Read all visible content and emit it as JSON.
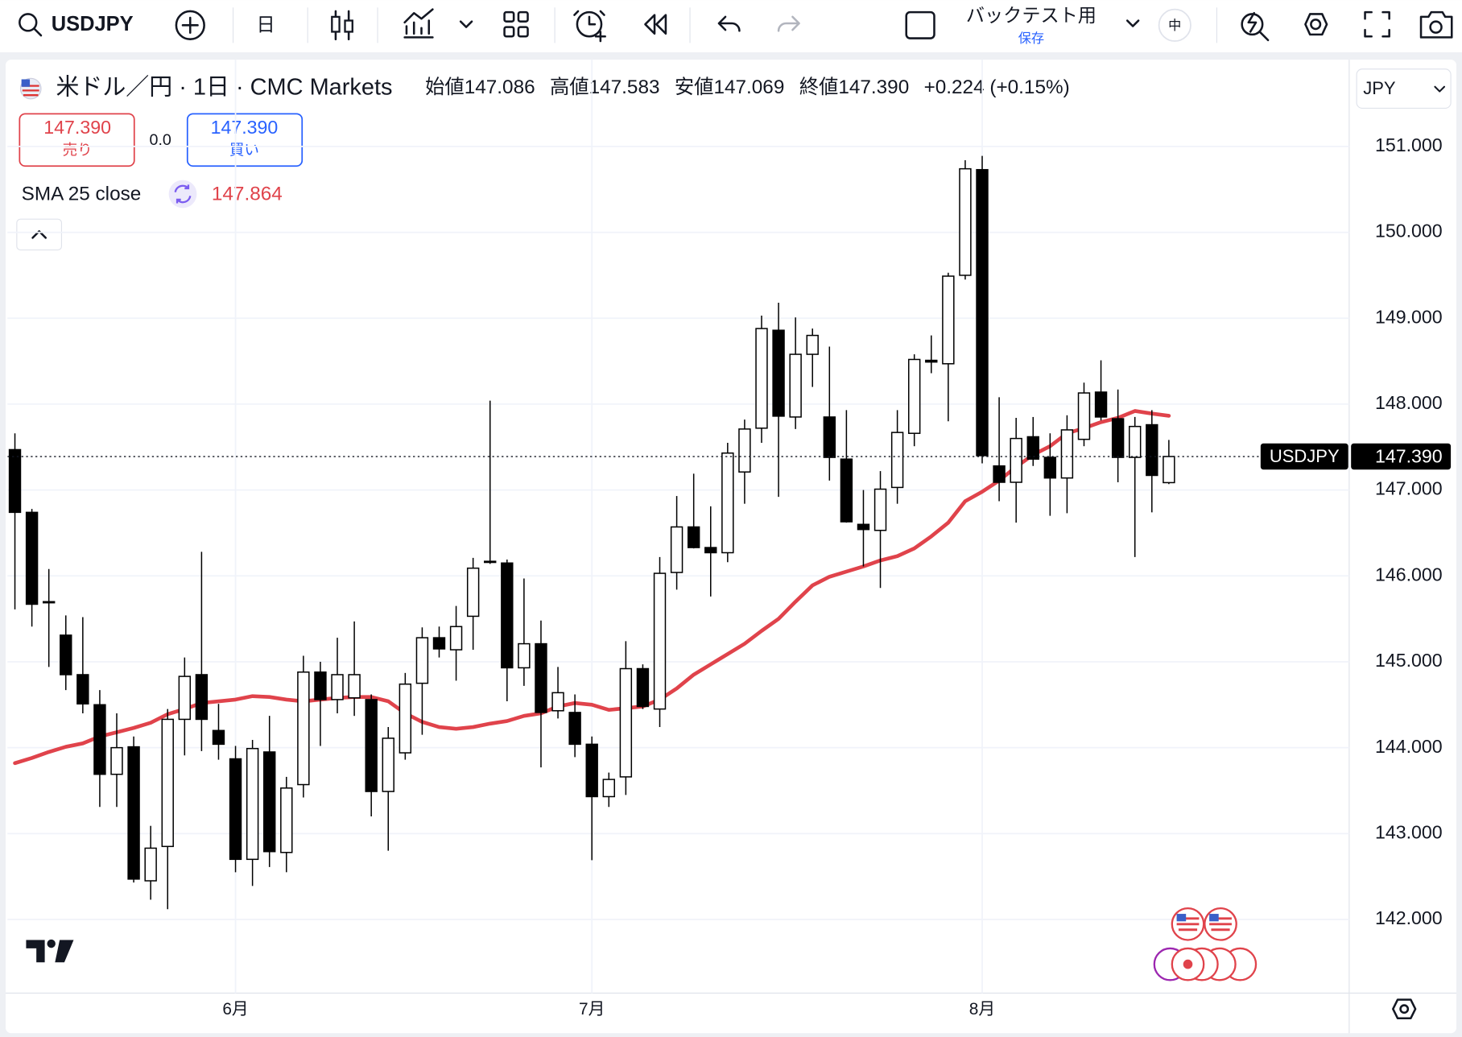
{
  "chart_data": {
    "type": "candlestick",
    "symbol": "USDJPY",
    "interval": "日",
    "toolbar_backtest": "バックテスト用",
    "toolbar_save": "保存",
    "toolbar_size": "中",
    "pair_title": "米ドル／円 · 1日 · CMC Markets",
    "currency": "JPY",
    "quote": {
      "open_label": "始値",
      "open": "147.086",
      "high_label": "高値",
      "high": "147.583",
      "low_label": "安値",
      "low": "147.069",
      "close_label": "終値",
      "close": "147.390",
      "change": "+0.224 (+0.15%)"
    },
    "trade": {
      "sell": "147.390",
      "sell_label": "売り",
      "spread": "0.0",
      "buy": "147.390",
      "buy_label": "買い"
    },
    "categories": [
      null,
      null,
      null,
      null,
      null,
      null,
      null,
      null,
      null,
      null,
      null,
      null,
      null,
      "6月",
      null,
      null,
      null,
      null,
      null,
      null,
      null,
      null,
      null,
      null,
      null,
      null,
      null,
      null,
      null,
      null,
      null,
      null,
      null,
      null,
      "7月",
      null,
      null,
      null,
      null,
      null,
      null,
      null,
      null,
      null,
      null,
      null,
      null,
      null,
      null,
      null,
      null,
      null,
      null,
      null,
      null,
      null,
      null,
      "8月",
      null,
      null,
      null,
      null,
      null,
      null,
      null,
      null,
      null,
      null,
      null
    ],
    "series": [
      {
        "name": "USDJPY",
        "up_color": "#ffffff",
        "down_color": "#000000",
        "open": [
          147.47,
          146.74,
          145.7,
          145.31,
          144.85,
          144.5,
          143.69,
          144.01,
          142.45,
          142.85,
          144.33,
          144.85,
          144.2,
          143.87,
          142.7,
          143.95,
          142.78,
          143.57,
          144.88,
          144.56,
          144.58,
          144.56,
          143.49,
          143.94,
          144.75,
          145.28,
          145.14,
          145.53,
          146.16,
          146.15,
          144.93,
          145.21,
          144.43,
          144.41,
          144.04,
          143.43,
          143.66,
          144.92,
          144.45,
          146.04,
          146.57,
          146.33,
          146.27,
          147.21,
          147.72,
          148.86,
          147.85,
          148.58,
          147.85,
          147.36,
          146.6,
          146.53,
          147.03,
          147.66,
          148.51,
          148.47,
          149.5,
          150.73,
          147.28,
          147.09,
          147.62,
          147.38,
          147.14,
          147.59,
          148.14,
          147.83,
          147.38,
          147.76,
          147.086
        ],
        "high": [
          147.66,
          146.78,
          146.08,
          145.54,
          145.52,
          144.67,
          144.4,
          144.13,
          143.09,
          144.45,
          145.05,
          146.28,
          144.51,
          144.02,
          144.09,
          144.37,
          143.66,
          145.07,
          145.0,
          145.28,
          145.47,
          144.62,
          144.24,
          144.87,
          145.4,
          145.41,
          145.65,
          146.21,
          148.04,
          146.19,
          145.97,
          145.48,
          144.94,
          144.62,
          144.13,
          143.71,
          145.24,
          144.97,
          146.22,
          146.93,
          147.19,
          146.81,
          147.55,
          147.82,
          149.03,
          149.18,
          149.01,
          148.88,
          148.67,
          147.93,
          147.0,
          147.22,
          147.93,
          148.58,
          148.8,
          149.53,
          150.84,
          150.89,
          148.08,
          147.84,
          147.85,
          147.66,
          147.87,
          148.25,
          148.51,
          148.17,
          147.85,
          147.93,
          147.583
        ],
        "low": [
          145.61,
          145.41,
          144.94,
          144.67,
          144.4,
          143.31,
          143.31,
          142.43,
          142.23,
          142.12,
          143.91,
          143.96,
          143.86,
          142.55,
          142.39,
          142.61,
          142.55,
          143.42,
          144.02,
          144.4,
          144.37,
          143.2,
          142.8,
          143.86,
          144.15,
          145.05,
          144.78,
          145.14,
          146.14,
          144.54,
          144.72,
          143.77,
          144.34,
          143.89,
          142.69,
          143.31,
          143.45,
          144.45,
          144.24,
          145.84,
          146.32,
          145.76,
          146.16,
          146.84,
          147.55,
          146.92,
          147.71,
          148.2,
          147.11,
          146.62,
          146.11,
          145.86,
          146.84,
          147.51,
          148.36,
          147.8,
          149.45,
          147.31,
          146.87,
          146.62,
          147.28,
          146.7,
          146.73,
          147.51,
          147.81,
          147.09,
          146.22,
          146.74,
          147.069
        ],
        "close": [
          146.74,
          145.67,
          145.69,
          144.85,
          144.51,
          143.69,
          144.0,
          142.47,
          142.83,
          144.33,
          144.83,
          144.33,
          144.04,
          142.7,
          143.99,
          142.79,
          143.53,
          144.88,
          144.56,
          144.85,
          144.85,
          143.49,
          144.11,
          144.74,
          145.28,
          145.15,
          145.41,
          146.09,
          146.17,
          144.93,
          145.21,
          144.41,
          144.64,
          144.04,
          143.43,
          143.63,
          144.92,
          144.48,
          146.03,
          146.57,
          146.33,
          146.27,
          147.43,
          147.71,
          148.88,
          147.86,
          148.58,
          148.8,
          147.38,
          146.63,
          146.54,
          147.01,
          147.67,
          148.52,
          148.49,
          149.49,
          150.74,
          147.4,
          147.09,
          147.6,
          147.36,
          147.14,
          147.7,
          148.13,
          147.85,
          147.38,
          147.74,
          147.17,
          147.39
        ]
      },
      {
        "name": "SMA 25 close",
        "color": "#e0434b",
        "values": [
          143.82,
          143.88,
          143.95,
          144.01,
          144.05,
          144.13,
          144.18,
          144.23,
          144.29,
          144.39,
          144.45,
          144.52,
          144.54,
          144.56,
          144.6,
          144.59,
          144.56,
          144.54,
          144.56,
          144.58,
          144.59,
          144.59,
          144.54,
          144.4,
          144.3,
          144.24,
          144.22,
          144.24,
          144.28,
          144.31,
          144.37,
          144.4,
          144.48,
          144.52,
          144.5,
          144.44,
          144.46,
          144.48,
          144.56,
          144.69,
          144.85,
          144.97,
          145.09,
          145.21,
          145.36,
          145.5,
          145.7,
          145.89,
          145.99,
          146.05,
          146.11,
          146.18,
          146.23,
          146.32,
          146.46,
          146.62,
          146.87,
          146.98,
          147.11,
          147.27,
          147.41,
          147.51,
          147.66,
          147.72,
          147.79,
          147.84,
          147.92,
          147.89,
          147.864
        ]
      }
    ],
    "ylim": [
      141.0,
      152.0
    ],
    "yticks": [
      {
        "value": 142,
        "label": "142.000"
      },
      {
        "value": 143,
        "label": "143.000"
      },
      {
        "value": 144,
        "label": "144.000"
      },
      {
        "value": 145,
        "label": "145.000"
      },
      {
        "value": 146,
        "label": "146.000"
      },
      {
        "value": 147,
        "label": "147.000"
      },
      {
        "value": 148,
        "label": "148.000"
      },
      {
        "value": 149,
        "label": "149.000"
      },
      {
        "value": 150,
        "label": "150.000"
      },
      {
        "value": 151,
        "label": "151.000"
      }
    ],
    "grid": true
  }
}
